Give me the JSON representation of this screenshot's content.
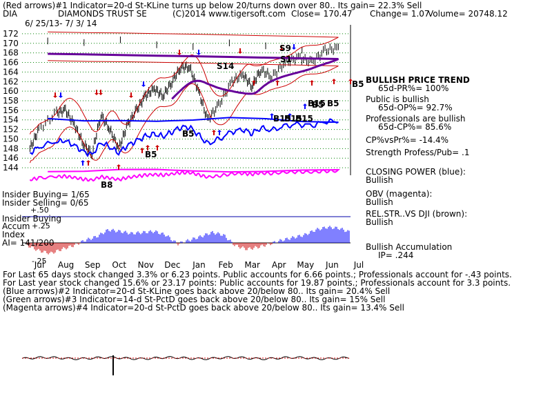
{
  "header": {
    "line1": "(Red arrows)#1 Indicator=20-d St-KLine turns up below 20/turns down over 80.. Its gain= 22.3% Sell",
    "ticker": "DIA",
    "name": "DIAMONDS TRUST SE",
    "copyright": "(C)2014 www.tigersoft.com",
    "close": "Close=  170.47",
    "change": "Change= 1.07",
    "volume": "Volume= 20748.12",
    "dates": "6/ 25/13- 7/ 3/ 14"
  },
  "insider": {
    "buying": "Insider Buying= 1/65",
    "selling": "Insider Selling= 0/65",
    "plus50": "+.50",
    "title": "Insider Buying",
    "accum": "Accum",
    "plus25": "+.25",
    "index": "Index",
    "ai": "AI= 141/200",
    "minus25": "-.25"
  },
  "right_panel": {
    "trend_title": "BULLISH PRICE TREND",
    "trend_value": "65d-PR%= 100%",
    "public": "Public is bullish",
    "public_value": "65d-OP%= 92.7%",
    "professionals": "Professionals are bullish",
    "professionals_value": "65d-CP%= 85.6%",
    "cpvspr": "CP%vsPr%= -14.4%",
    "strength": "Strength Profess/Pub= .1",
    "closing_power": "CLOSING POWER (blue):",
    "closing_power_value": "Bullish",
    "obv": "OBV (magenta):",
    "obv_value": "Bullish",
    "relstr": "REL.STR..VS DJI (brown):",
    "relstr_value": "Bullish",
    "accumulation": "Bullish Accumulation",
    "ip": "IP=  .244"
  },
  "signal_labels": [
    "S9",
    "S14",
    "S1",
    "B5",
    "B5",
    "B5",
    "B5",
    "B15",
    "B15",
    "B15",
    "B15",
    "B5",
    "B5",
    "B8"
  ],
  "footer": [
    "For Last 65 days stock changed  3.3% or  6.23 points.  Public accounts for  6.66 points.; Professionals account for -.43 points.",
    "For Last year stock changed  15.6% or  23.17 points:  Public accounts for  19.87 points.;  Professionals account for  3.3 points.",
    "(Blue arrows)#2 Indicator=20-d St-KLine goes back above 20/below 80.. Its gain= 20.4% Sell",
    "(Green arrows)#3 Indicator=14-d St-PctD goes back above 20/below 80.. Its gain= 15% Sell",
    "(Magenta arrows)#4 Indicator=20-d St-PctD goes back above 20/below 80.. Its gain= 13.4% Sell"
  ],
  "colors": {
    "price": "#000000",
    "bands": "#cc0000",
    "ma": "#660099",
    "closing_power": "#0000ff",
    "obv": "#ff00ff",
    "grid": "#008000",
    "accum_pos": "#0000ff",
    "accum_neg": "#cc0000"
  },
  "chart_data": {
    "type": "line",
    "title": "DIAMONDS TRUST SE",
    "y_ticks": [
      144,
      146,
      148,
      150,
      152,
      154,
      156,
      158,
      160,
      162,
      164,
      166,
      168,
      170,
      172
    ],
    "ylim": [
      143,
      173
    ],
    "x_ticks": [
      "Jul",
      "Aug",
      "Sep",
      "Oct",
      "Nov",
      "Dec",
      "Jan",
      "Feb",
      "Mar",
      "Apr",
      "May",
      "Jun",
      "Jul"
    ],
    "grid": true,
    "series": [
      {
        "key": "price",
        "x": [
          "Jul",
          "Jul",
          "Aug",
          "Aug",
          "Aug",
          "Sep",
          "Sep",
          "Sep",
          "Oct",
          "Oct",
          "Oct",
          "Nov",
          "Nov",
          "Nov",
          "Dec",
          "Dec",
          "Dec",
          "Jan",
          "Jan",
          "Jan",
          "Feb",
          "Feb",
          "Mar",
          "Mar",
          "Mar",
          "Apr",
          "Apr",
          "May",
          "May",
          "Jun",
          "Jun",
          "Jul"
        ],
        "values": [
          148,
          152,
          155.5,
          156,
          153,
          149,
          147,
          155,
          152,
          148,
          153,
          156,
          159,
          160.5,
          159,
          162,
          165,
          165,
          160,
          154,
          157,
          162,
          163.5,
          161,
          164.5,
          163,
          166,
          167,
          166,
          168.5,
          169,
          170.5
        ]
      }
    ],
    "insider_accum_index": {
      "ylim": [
        -0.25,
        0.5
      ],
      "values": [
        -0.05,
        -0.15,
        -0.2,
        -0.12,
        -0.05,
        0.05,
        0.12,
        0.25,
        0.22,
        0.18,
        0.2,
        0.22,
        0.15,
        -0.02,
        0.05,
        0.12,
        0.2,
        0.15,
        -0.05,
        -0.12,
        -0.08,
        -0.02,
        0.05,
        0.1,
        0.15,
        0.25,
        0.3,
        0.28,
        0.2
      ]
    }
  }
}
